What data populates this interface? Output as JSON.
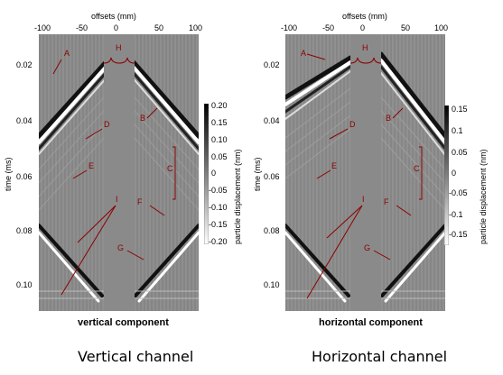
{
  "panels": [
    {
      "title": "vertical component",
      "caption": "Vertical channel",
      "x_axis_label": "offsets (mm)",
      "x_ticks": [
        "-100",
        "-50",
        "0",
        "50",
        "100"
      ],
      "y_axis_label": "time (ms)",
      "y_ticks": [
        "0.02",
        "0.04",
        "0.06",
        "0.08",
        "0.10"
      ],
      "colorbar_label": "particle displacement (nm)",
      "colorbar_ticks": [
        "0.20",
        "0.15",
        "0.10",
        "0.05",
        "0",
        "-0.05",
        "-0.10",
        "-0.15",
        "-0.20"
      ],
      "annotations": [
        "A",
        "B",
        "C",
        "D",
        "E",
        "F",
        "G",
        "H",
        "I"
      ]
    },
    {
      "title": "horizontal component",
      "caption": "Horizontal channel",
      "x_axis_label": "offsets (mm)",
      "x_ticks": [
        "-100",
        "-50",
        "0",
        "50",
        "100"
      ],
      "y_axis_label": "time (ms)",
      "y_ticks": [
        "0.02",
        "0.04",
        "0.06",
        "0.08",
        "0.10"
      ],
      "colorbar_label": "particle displacement (nm)",
      "colorbar_ticks": [
        "0.15",
        "0.1",
        "0.05",
        "0",
        "-0.05",
        "-0.1",
        "-0.15"
      ],
      "annotations": [
        "A",
        "B",
        "C",
        "D",
        "E",
        "F",
        "G",
        "H",
        "I"
      ]
    }
  ],
  "colors": {
    "annotation": "#8b0000",
    "background": "#8c8c8c"
  }
}
